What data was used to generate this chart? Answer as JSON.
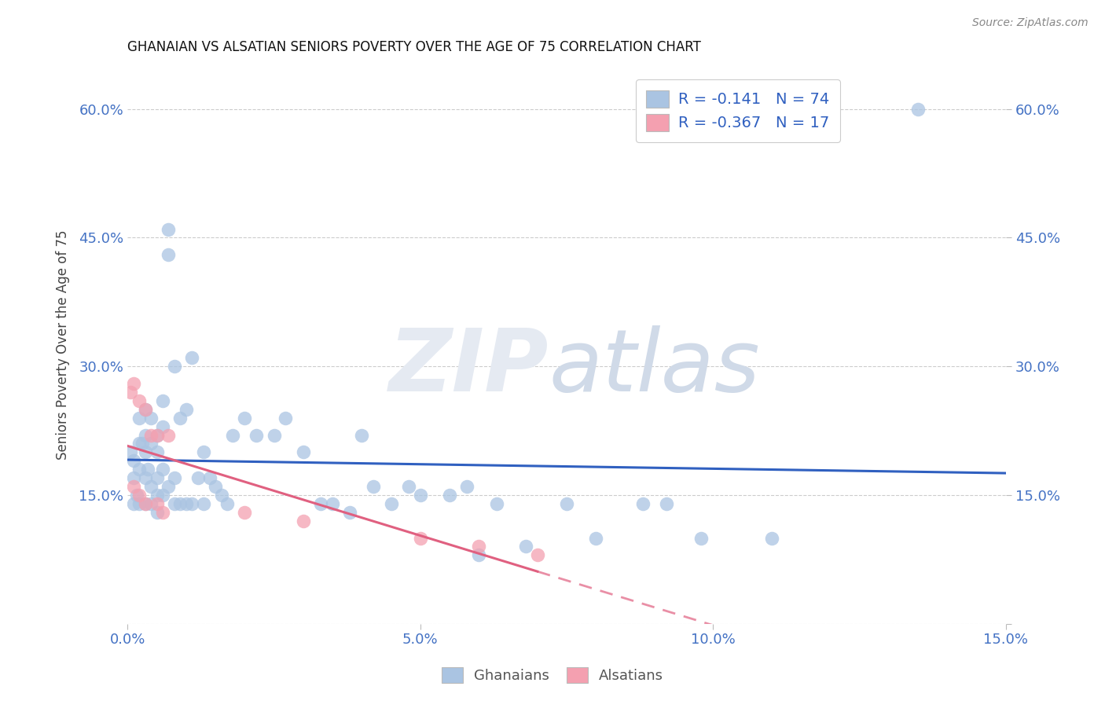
{
  "title": "GHANAIAN VS ALSATIAN SENIORS POVERTY OVER THE AGE OF 75 CORRELATION CHART",
  "source": "Source: ZipAtlas.com",
  "ylabel": "Seniors Poverty Over the Age of 75",
  "xlim": [
    0.0,
    0.15
  ],
  "ylim": [
    0.0,
    0.65
  ],
  "xticks": [
    0.0,
    0.05,
    0.1,
    0.15
  ],
  "yticks": [
    0.0,
    0.15,
    0.3,
    0.45,
    0.6
  ],
  "xticklabels": [
    "0.0%",
    "5.0%",
    "10.0%",
    "15.0%"
  ],
  "yticklabels": [
    "",
    "15.0%",
    "30.0%",
    "45.0%",
    "60.0%"
  ],
  "ghanaian_color": "#aac4e2",
  "alsatian_color": "#f4a0b0",
  "ghanaian_line_color": "#3060c0",
  "alsatian_line_color": "#e06080",
  "R_ghanaian": -0.141,
  "N_ghanaian": 74,
  "R_alsatian": -0.367,
  "N_alsatian": 17,
  "ghanaians_x": [
    0.0005,
    0.001,
    0.001,
    0.001,
    0.0015,
    0.002,
    0.002,
    0.002,
    0.002,
    0.0025,
    0.003,
    0.003,
    0.003,
    0.003,
    0.003,
    0.0035,
    0.004,
    0.004,
    0.004,
    0.004,
    0.005,
    0.005,
    0.005,
    0.005,
    0.005,
    0.006,
    0.006,
    0.006,
    0.006,
    0.007,
    0.007,
    0.007,
    0.008,
    0.008,
    0.008,
    0.009,
    0.009,
    0.01,
    0.01,
    0.011,
    0.011,
    0.012,
    0.013,
    0.013,
    0.014,
    0.015,
    0.016,
    0.017,
    0.018,
    0.02,
    0.022,
    0.025,
    0.027,
    0.03,
    0.033,
    0.035,
    0.038,
    0.04,
    0.042,
    0.045,
    0.048,
    0.05,
    0.055,
    0.058,
    0.06,
    0.063,
    0.068,
    0.075,
    0.08,
    0.088,
    0.092,
    0.098,
    0.11,
    0.135
  ],
  "ghanaians_y": [
    0.2,
    0.19,
    0.17,
    0.14,
    0.15,
    0.24,
    0.21,
    0.18,
    0.14,
    0.21,
    0.25,
    0.22,
    0.2,
    0.17,
    0.14,
    0.18,
    0.24,
    0.21,
    0.16,
    0.14,
    0.22,
    0.2,
    0.17,
    0.15,
    0.13,
    0.26,
    0.23,
    0.18,
    0.15,
    0.46,
    0.43,
    0.16,
    0.3,
    0.17,
    0.14,
    0.24,
    0.14,
    0.25,
    0.14,
    0.31,
    0.14,
    0.17,
    0.2,
    0.14,
    0.17,
    0.16,
    0.15,
    0.14,
    0.22,
    0.24,
    0.22,
    0.22,
    0.24,
    0.2,
    0.14,
    0.14,
    0.13,
    0.22,
    0.16,
    0.14,
    0.16,
    0.15,
    0.15,
    0.16,
    0.08,
    0.14,
    0.09,
    0.14,
    0.1,
    0.14,
    0.14,
    0.1,
    0.1,
    0.6
  ],
  "alsatians_x": [
    0.0005,
    0.001,
    0.001,
    0.002,
    0.002,
    0.003,
    0.003,
    0.004,
    0.005,
    0.005,
    0.006,
    0.007,
    0.02,
    0.03,
    0.05,
    0.06,
    0.07
  ],
  "alsatians_y": [
    0.27,
    0.28,
    0.16,
    0.26,
    0.15,
    0.25,
    0.14,
    0.22,
    0.22,
    0.14,
    0.13,
    0.22,
    0.13,
    0.12,
    0.1,
    0.09,
    0.08
  ]
}
